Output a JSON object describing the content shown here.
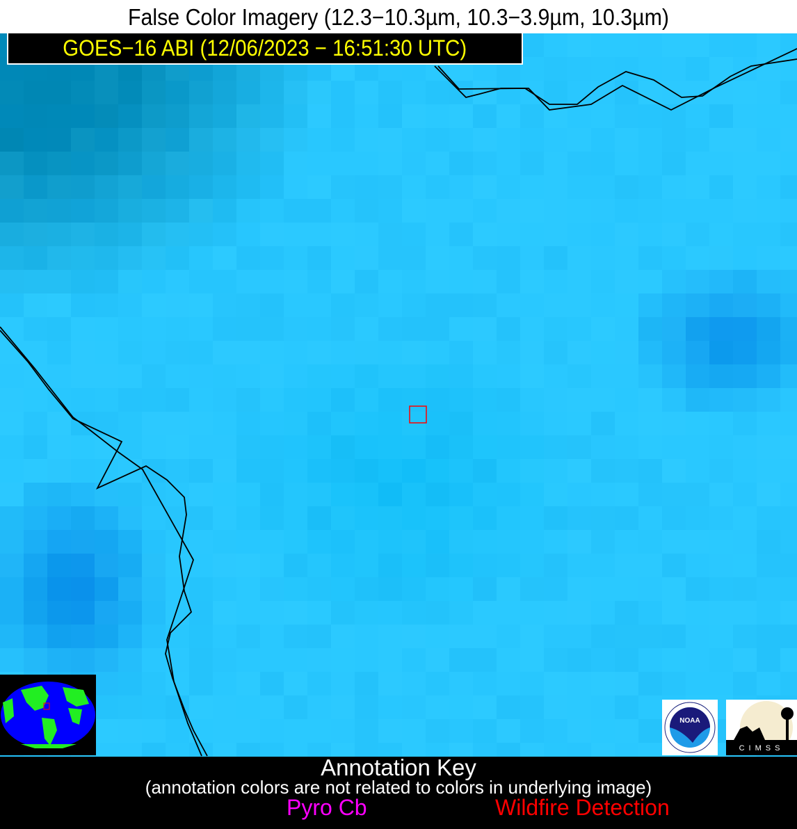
{
  "header": {
    "title": "False Color Imagery (12.3−10.3µm, 10.3−3.9µm, 10.3µm)",
    "subtitle": "GOES−16 ABI (12/06/2023 − 16:51:30 UTC)"
  },
  "colors": {
    "base_cyan": "#29c8ff",
    "subtitle_text": "#ffff00",
    "pyro_cb": "#ff00ff",
    "wildfire_detection": "#ff0000",
    "coastline": "#000000"
  },
  "annotation_key": {
    "title": "Annotation Key",
    "note": "(annotation colors are not related to colors in underlying image)",
    "items": [
      {
        "label": "Pyro Cb",
        "color": "#ff00ff"
      },
      {
        "label": "Wildfire Detection",
        "color": "#ff0000"
      }
    ]
  },
  "logos": {
    "noaa": "NOAA",
    "cimss": "CIMSS"
  }
}
